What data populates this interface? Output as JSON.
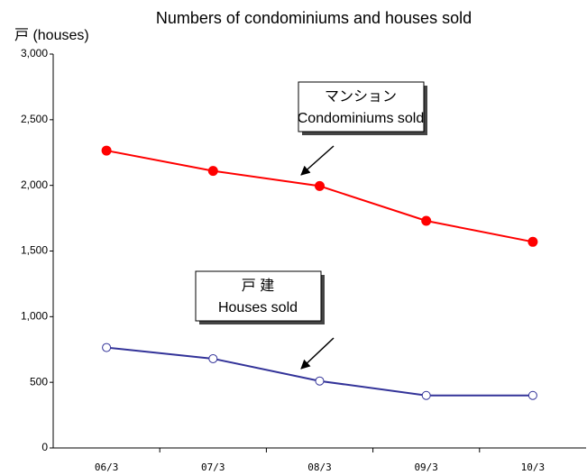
{
  "chart_data": {
    "type": "line",
    "title": "Numbers of condominiums and houses sold",
    "y_label": "戸 (houses)",
    "categories": [
      "06/3",
      "07/3",
      "08/3",
      "09/3",
      "10/3"
    ],
    "series": [
      {
        "name": "Condominiums sold",
        "color": "#ff0000",
        "marker": "filled",
        "values": [
          2265,
          2110,
          1995,
          1730,
          1570
        ]
      },
      {
        "name": "Houses sold",
        "color": "#333399",
        "marker": "hollow",
        "values": [
          765,
          680,
          510,
          400,
          400
        ]
      }
    ],
    "annotations": [
      {
        "title": "マンション",
        "text": "Condominiums  sold"
      },
      {
        "title": "戸 建",
        "text": "Houses sold"
      }
    ],
    "ylim": [
      0,
      3000
    ],
    "yticks": [
      0,
      500,
      {
        "value": 1000,
        "label": "1,000"
      },
      {
        "value": 1500,
        "label": "1,500"
      },
      {
        "value": 2000,
        "label": "2,000"
      },
      {
        "value": 2500,
        "label": "2,500"
      },
      {
        "value": 3000,
        "label": "3,000"
      }
    ],
    "grid": false
  }
}
